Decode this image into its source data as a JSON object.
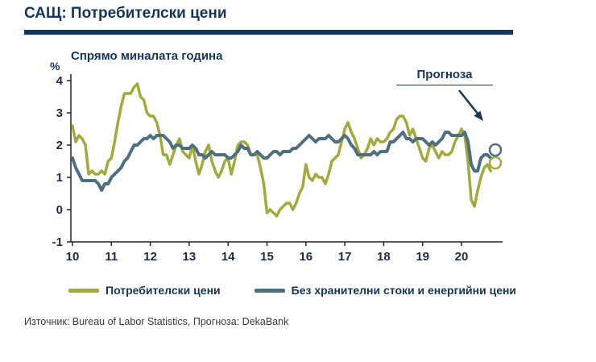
{
  "header": {
    "title": "САЩ: Потребителски цени"
  },
  "chart": {
    "subtitle": "Спрямо миналата година",
    "y_unit": "%",
    "forecast_label": "Прогноза"
  },
  "legend": {
    "items": [
      {
        "label": "Потребителски цени",
        "color": "#a3aa3c"
      },
      {
        "label": "Без хранителни стоки и енергийни цени",
        "color": "#4e6f7e"
      }
    ]
  },
  "footer": {
    "source": "Източник: Bureau of Labor Statistics, Прогноза: DekaBank"
  },
  "colors": {
    "accent": "#16355c",
    "cpi_line": "#a3aa3c",
    "core_line": "#4e6f7e",
    "axis": "#222222"
  },
  "chart_data": {
    "type": "line",
    "title": "САЩ: Потребителски цени",
    "subtitle": "Спрямо миналата година",
    "xlabel": "",
    "ylabel": "%",
    "ylim": [
      -1,
      4
    ],
    "yticks": [
      4,
      3,
      2,
      1,
      0,
      -1
    ],
    "xticks": [
      10,
      11,
      12,
      13,
      14,
      15,
      16,
      17,
      18,
      19,
      20
    ],
    "x_start_year": 2010,
    "x_step_months": 1,
    "grid": false,
    "legend_position": "bottom",
    "series": [
      {
        "name": "Потребителски цени",
        "color": "#a3aa3c",
        "stroke_width": 3.5,
        "values": [
          2.6,
          2.1,
          2.3,
          2.2,
          2.0,
          1.1,
          1.2,
          1.1,
          1.1,
          1.2,
          1.1,
          1.5,
          1.6,
          2.1,
          2.7,
          3.2,
          3.6,
          3.6,
          3.6,
          3.8,
          3.9,
          3.5,
          3.4,
          3.0,
          2.9,
          2.9,
          2.7,
          2.3,
          1.7,
          1.7,
          1.4,
          1.7,
          2.0,
          2.2,
          1.8,
          1.7,
          1.6,
          2.0,
          1.5,
          1.1,
          1.4,
          1.8,
          2.0,
          1.5,
          1.2,
          1.0,
          1.2,
          1.5,
          1.6,
          1.1,
          1.5,
          2.0,
          2.1,
          2.1,
          2.0,
          1.7,
          1.7,
          1.7,
          1.3,
          0.8,
          -0.1,
          0.0,
          -0.1,
          -0.2,
          0.0,
          0.1,
          0.2,
          0.2,
          0.0,
          0.2,
          0.5,
          0.7,
          1.4,
          1.0,
          0.9,
          1.1,
          1.0,
          1.0,
          0.8,
          1.1,
          1.5,
          1.6,
          1.7,
          2.1,
          2.5,
          2.7,
          2.4,
          2.2,
          1.9,
          1.6,
          1.7,
          1.9,
          2.2,
          2.0,
          2.2,
          2.1,
          2.1,
          2.2,
          2.4,
          2.5,
          2.8,
          2.9,
          2.9,
          2.7,
          2.3,
          2.5,
          2.2,
          1.9,
          1.6,
          1.5,
          1.9,
          2.0,
          1.8,
          1.6,
          1.8,
          1.7,
          1.7,
          1.8,
          2.1,
          2.3,
          2.5,
          2.3,
          1.5,
          0.3,
          0.1,
          0.6,
          1.0,
          1.3,
          1.4,
          1.2
        ]
      },
      {
        "name": "Без хранителни стоки и енергийни цени",
        "color": "#4e6f7e",
        "stroke_width": 4,
        "values": [
          1.6,
          1.3,
          1.1,
          0.9,
          0.9,
          0.9,
          0.9,
          0.9,
          0.8,
          0.6,
          0.8,
          0.8,
          1.0,
          1.1,
          1.2,
          1.3,
          1.5,
          1.6,
          1.8,
          2.0,
          2.0,
          2.1,
          2.2,
          2.2,
          2.3,
          2.2,
          2.3,
          2.3,
          2.3,
          2.2,
          2.1,
          1.9,
          2.0,
          2.0,
          1.9,
          1.9,
          1.9,
          2.0,
          1.9,
          1.7,
          1.7,
          1.6,
          1.7,
          1.8,
          1.7,
          1.7,
          1.7,
          1.7,
          1.6,
          1.6,
          1.7,
          1.8,
          2.0,
          1.9,
          1.9,
          1.7,
          1.7,
          1.8,
          1.7,
          1.6,
          1.6,
          1.7,
          1.8,
          1.8,
          1.7,
          1.8,
          1.8,
          1.8,
          1.9,
          1.9,
          2.0,
          2.1,
          2.2,
          2.3,
          2.2,
          2.1,
          2.2,
          2.2,
          2.2,
          2.3,
          2.2,
          2.1,
          2.1,
          2.2,
          2.3,
          2.2,
          2.0,
          1.9,
          1.7,
          1.7,
          1.7,
          1.7,
          1.7,
          1.8,
          1.7,
          1.8,
          1.8,
          1.8,
          2.1,
          2.1,
          2.2,
          2.3,
          2.4,
          2.2,
          2.2,
          2.1,
          2.2,
          2.2,
          2.2,
          2.1,
          2.0,
          2.1,
          2.0,
          2.1,
          2.2,
          2.4,
          2.4,
          2.3,
          2.3,
          2.3,
          2.3,
          2.4,
          2.1,
          1.4,
          1.2,
          1.2,
          1.6,
          1.7,
          1.7,
          1.6
        ]
      }
    ],
    "forecast_points": [
      {
        "series": "Без хранителни стоки и енергийни цени",
        "x": 2020.87,
        "y": 1.85,
        "color": "#4e6f7e"
      },
      {
        "series": "Потребителски цени",
        "x": 2020.87,
        "y": 1.45,
        "color": "#a3aa3c"
      }
    ],
    "annotation": {
      "label": "Прогноза",
      "arrow_points_to": "forecast_points"
    }
  }
}
